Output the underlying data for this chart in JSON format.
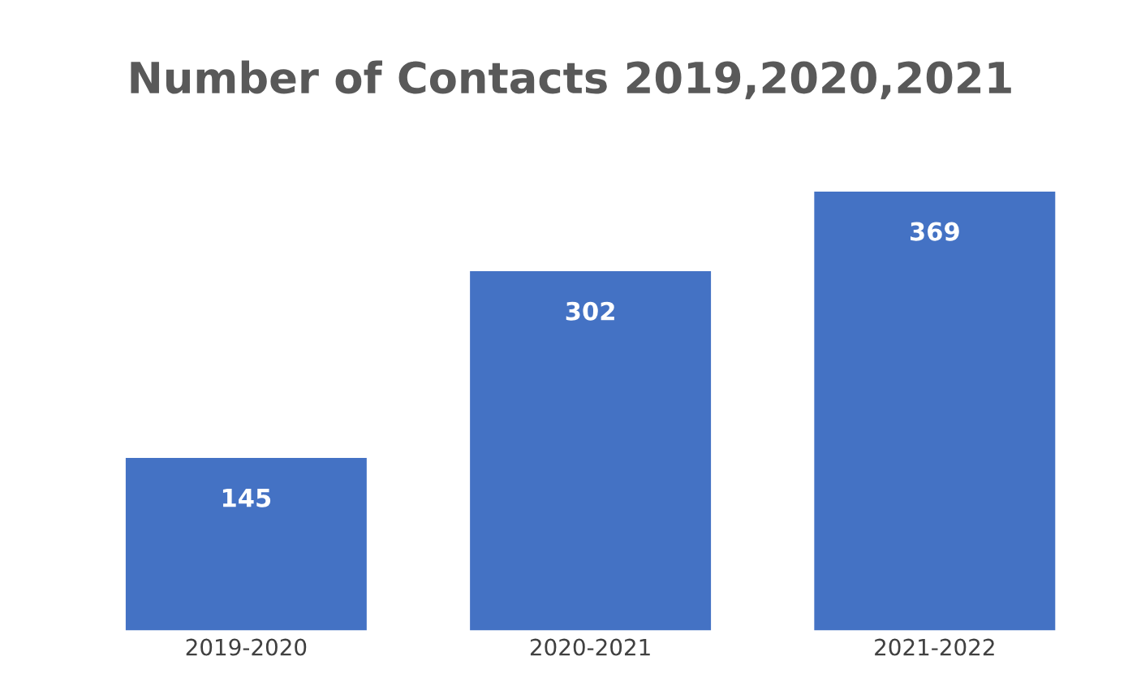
{
  "chart_data": {
    "type": "bar",
    "title": "Number of Contacts 2019,2020,2021",
    "categories": [
      "2019-2020",
      "2020-2021",
      "2021-2022"
    ],
    "values": [
      145,
      302,
      369
    ],
    "color": "#4472c4",
    "data_labels": true,
    "tick_labels": "x",
    "grid": false,
    "legend": false
  }
}
